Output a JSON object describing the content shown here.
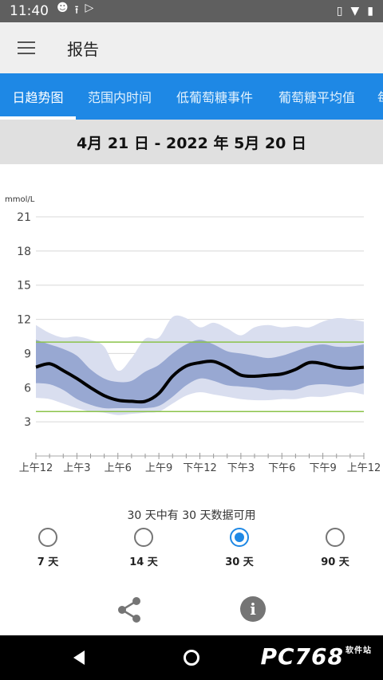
{
  "status_bar": {
    "time": "11:40",
    "left_icons": [
      "face-icon",
      "upload-icon",
      "play-store-icon"
    ],
    "right_icons": [
      "vibrate-icon",
      "wifi-icon",
      "battery-icon"
    ]
  },
  "app_bar": {
    "title": "报告",
    "menu_icon": "menu-icon"
  },
  "tabs": [
    {
      "label": "日趋势图",
      "active": true
    },
    {
      "label": "范围内时间",
      "active": false
    },
    {
      "label": "低葡萄糖事件",
      "active": false
    },
    {
      "label": "葡萄糖平均值",
      "active": false
    },
    {
      "label": "每",
      "active": false
    }
  ],
  "date_range": "4月 21 日 - 2022 年 5月 20 日",
  "chart_data": {
    "type": "area",
    "ylabel": "mmol/L",
    "ylim": [
      0,
      21
    ],
    "yticks": [
      "21",
      "18",
      "15",
      "12",
      "9",
      "6",
      "3"
    ],
    "ytick_values": [
      21,
      18,
      15,
      12,
      9,
      6,
      3
    ],
    "xticks": [
      "上午12",
      "上午3",
      "上午6",
      "上午9",
      "下午12",
      "下午3",
      "下午6",
      "下午9",
      "上午12"
    ],
    "xtick_hours": [
      0,
      3,
      6,
      9,
      12,
      15,
      18,
      21,
      24
    ],
    "target_range": [
      3.9,
      10.0
    ],
    "colors": {
      "median": "#000000",
      "inner_band": "#8c9fcd",
      "outer_band": "#d9deef",
      "target_line": "#8bc34a",
      "grid": "#d8d8d8"
    },
    "x_hours": [
      0,
      1,
      2,
      3,
      4,
      5,
      6,
      7,
      8,
      9,
      10,
      11,
      12,
      13,
      14,
      15,
      16,
      17,
      18,
      19,
      20,
      21,
      22,
      23,
      24
    ],
    "series": [
      {
        "role": "p90",
        "values": [
          11.5,
          10.8,
          10.4,
          10.5,
          10.2,
          9.6,
          7.5,
          8.6,
          10.3,
          10.4,
          12.2,
          12.1,
          11.3,
          11.7,
          11.2,
          10.6,
          11.3,
          11.5,
          11.3,
          11.4,
          11.3,
          11.8,
          12.1,
          12.0,
          11.8
        ]
      },
      {
        "role": "p75",
        "values": [
          10.2,
          9.8,
          9.4,
          8.8,
          7.6,
          6.8,
          6.5,
          6.6,
          7.4,
          8.0,
          9.0,
          9.8,
          10.2,
          9.8,
          9.2,
          9.0,
          8.8,
          8.6,
          8.8,
          9.2,
          9.6,
          9.8,
          9.6,
          9.6,
          9.8
        ]
      },
      {
        "role": "median",
        "values": [
          7.8,
          8.1,
          7.5,
          6.8,
          6.0,
          5.3,
          4.9,
          4.8,
          4.8,
          5.5,
          7.0,
          7.9,
          8.2,
          8.3,
          7.8,
          7.1,
          7.0,
          7.1,
          7.2,
          7.6,
          8.2,
          8.1,
          7.8,
          7.7,
          7.8
        ]
      },
      {
        "role": "p25",
        "values": [
          6.4,
          6.3,
          5.8,
          5.0,
          4.5,
          4.2,
          4.2,
          4.2,
          4.2,
          4.4,
          5.2,
          6.2,
          6.8,
          6.6,
          6.2,
          6.1,
          6.0,
          5.8,
          5.8,
          5.8,
          6.2,
          6.3,
          6.2,
          6.1,
          6.4
        ]
      },
      {
        "role": "p10",
        "values": [
          5.1,
          5.0,
          4.6,
          4.2,
          3.9,
          3.8,
          3.6,
          3.7,
          3.8,
          3.9,
          4.6,
          5.3,
          5.6,
          5.4,
          5.2,
          5.0,
          4.9,
          4.9,
          5.0,
          5.0,
          5.2,
          5.2,
          5.4,
          5.6,
          5.4
        ]
      }
    ]
  },
  "availability": "30 天中有 30 天数据可用",
  "periods": [
    {
      "label": "7 天",
      "selected": false
    },
    {
      "label": "14 天",
      "selected": false
    },
    {
      "label": "30 天",
      "selected": true
    },
    {
      "label": "90 天",
      "selected": false
    }
  ],
  "actions": {
    "share_icon": "share-icon",
    "info_icon": "info-icon"
  },
  "nav": {
    "back_icon": "back-icon",
    "home_icon": "home-icon"
  },
  "watermark": "PC768"
}
